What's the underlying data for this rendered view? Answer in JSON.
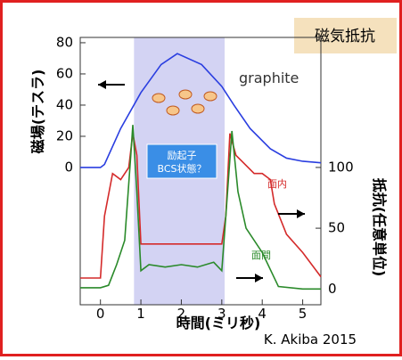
{
  "chart_data": {
    "type": "line",
    "title": "磁気抵抗",
    "x_label": "時間(ミリ秒)",
    "y_label": "磁場(テスラ)",
    "y2_label": "抵抗(任意単位)",
    "annotations": {
      "material": "graphite",
      "state": [
        "励起子",
        "BCS状態？"
      ],
      "credit": "K. Akiba 2015"
    },
    "xlim": [
      -0.5,
      5.45
    ],
    "xticks": [
      0,
      1,
      2,
      3,
      4,
      5
    ],
    "ylim": [
      -88,
      83.4
    ],
    "yticks": [
      0,
      20,
      40,
      60,
      80
    ],
    "y2lim": [
      -13,
      207
    ],
    "y2ticks": [
      0,
      50,
      100
    ],
    "shaded_region": [
      0.83,
      3.07
    ],
    "series": [
      {
        "color": "#2a3ee0",
        "x": [
          -0.5,
          0,
          0.1,
          0.5,
          1,
          1.5,
          1.9,
          2.5,
          3,
          3.3,
          3.7,
          4.2,
          4.6,
          5,
          5.45
        ],
        "values": [
          0,
          0,
          2,
          25,
          48,
          66,
          73,
          66,
          52,
          40,
          25,
          12,
          6,
          4,
          3
        ]
      },
      {
        "name": "面内",
        "color": "#d42a2a",
        "axis": "y2",
        "x": [
          -0.5,
          0,
          0.1,
          0.3,
          0.5,
          0.7,
          0.8,
          0.9,
          1,
          1.5,
          2,
          2.5,
          3,
          3.1,
          3.2,
          3.35,
          3.5,
          3.8,
          4,
          4.2,
          4.3,
          4.6,
          5,
          5.45
        ],
        "values": [
          9,
          9,
          60,
          95,
          90,
          100,
          128,
          110,
          37,
          37,
          37,
          37,
          37,
          60,
          128,
          110,
          105,
          95,
          95,
          90,
          70,
          45,
          30,
          10
        ]
      },
      {
        "name": "面間",
        "color": "#2a8a2a",
        "axis": "y2",
        "x": [
          -0.5,
          0,
          0.2,
          0.4,
          0.6,
          0.75,
          0.8,
          0.9,
          1,
          1.2,
          1.6,
          2,
          2.4,
          2.8,
          3,
          3.1,
          3.25,
          3.4,
          3.6,
          4,
          4.4,
          5,
          5.45
        ],
        "values": [
          1,
          1,
          3,
          20,
          40,
          110,
          135,
          80,
          15,
          20,
          18,
          20,
          18,
          22,
          15,
          60,
          130,
          80,
          50,
          30,
          2,
          0,
          0
        ]
      }
    ]
  }
}
